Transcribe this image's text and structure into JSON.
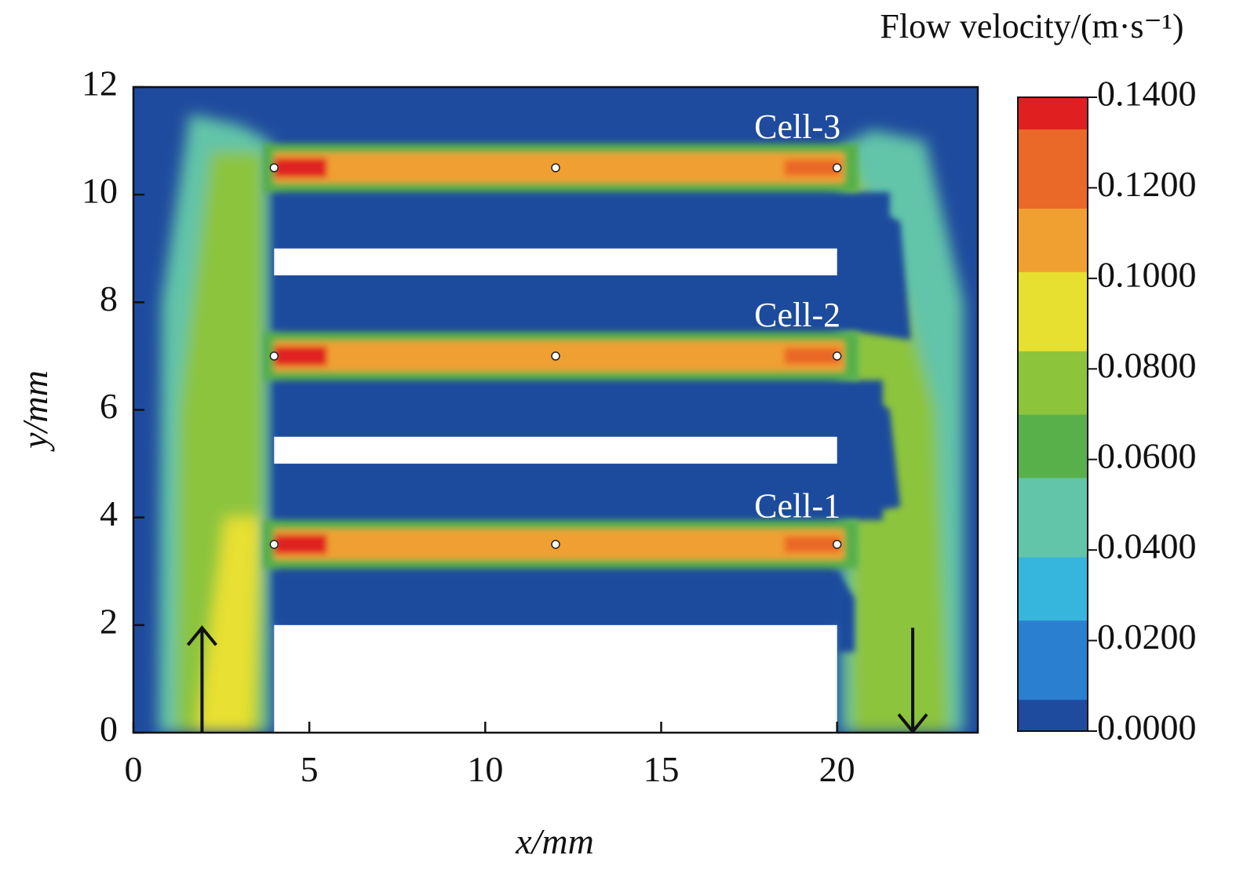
{
  "chart_data": {
    "type": "contour",
    "x_label": "x/mm",
    "y_label": "y/mm",
    "xlim": [
      0,
      24
    ],
    "ylim": [
      0,
      12
    ],
    "xticks": [
      0,
      5,
      10,
      15,
      20
    ],
    "yticks": [
      0,
      2,
      4,
      6,
      8,
      10,
      12
    ],
    "annotations": [
      "Cell-1",
      "Cell-2",
      "Cell-3"
    ],
    "colorbar": {
      "label": "Flow velocity/(m·s⁻¹)",
      "lim": [
        0,
        0.14
      ],
      "ticks": [
        {
          "value": 0,
          "label": "0.0000"
        },
        {
          "value": 0.02,
          "label": "0.0200"
        },
        {
          "value": 0.04,
          "label": "0.0400"
        },
        {
          "value": 0.06,
          "label": "0.0600"
        },
        {
          "value": 0.08,
          "label": "0.0800"
        },
        {
          "value": 0.1,
          "label": "0.1000"
        },
        {
          "value": 0.12,
          "label": "0.1200"
        },
        {
          "value": 0.14,
          "label": "0.1400"
        }
      ],
      "colormap": [
        "#1f4b9e",
        "#2a7fd0",
        "#36b6dc",
        "#62c4a8",
        "#58b04a",
        "#8cc43c",
        "#e8e030",
        "#f0a030",
        "#ea6828",
        "#e02020"
      ]
    }
  }
}
